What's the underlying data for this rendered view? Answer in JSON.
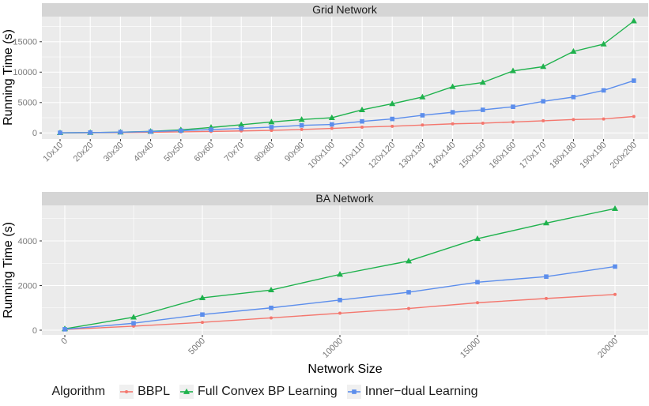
{
  "figure": {
    "xaxis_title": "Network Size",
    "panel_bg": "#EBEBEB",
    "strip_bg": "#D5D5D5",
    "grid_color": "#FFFFFF",
    "tick_color": "#333333",
    "tick_label_color": "#7A7A7A"
  },
  "legend": {
    "title": "Algorithm",
    "items": [
      {
        "label": "BBPL",
        "color": "#F4776E",
        "marker": "circle"
      },
      {
        "label": "Full Convex BP Learning",
        "color": "#1FB24D",
        "marker": "triangle"
      },
      {
        "label": "Inner−dual Learning",
        "color": "#5C8EEC",
        "marker": "square"
      }
    ]
  },
  "chart_data": [
    {
      "type": "line",
      "title": "Grid Network",
      "ylabel": "Running Time (s)",
      "xlabel": "",
      "x_type": "categorical",
      "categories": [
        "10x10",
        "20x20",
        "30x30",
        "40x40",
        "50x50",
        "60x60",
        "70x70",
        "80x80",
        "90x90",
        "100x100",
        "110x110",
        "120x120",
        "130x130",
        "140x140",
        "150x150",
        "160x160",
        "170x170",
        "180x180",
        "190x190",
        "200x200"
      ],
      "y_ticks": [
        0,
        5000,
        10000,
        15000
      ],
      "y_minor": [
        2500,
        7500,
        12500,
        17500
      ],
      "ylim": [
        -1000,
        19100
      ],
      "grid": true,
      "legend_position": "bottom",
      "series": [
        {
          "name": "BBPL",
          "color": "#F4776E",
          "marker": "circle",
          "values": [
            10,
            30,
            70,
            120,
            180,
            250,
            330,
            420,
            570,
            750,
            950,
            1100,
            1300,
            1500,
            1600,
            1800,
            2000,
            2200,
            2300,
            2700
          ]
        },
        {
          "name": "Full Convex BP Learning",
          "color": "#1FB24D",
          "marker": "triangle",
          "values": [
            20,
            60,
            130,
            250,
            500,
            900,
            1350,
            1800,
            2200,
            2500,
            3800,
            4800,
            5900,
            7600,
            8300,
            10200,
            10900,
            13400,
            14600,
            18400
          ]
        },
        {
          "name": "Inner−dual Learning",
          "color": "#5C8EEC",
          "marker": "square",
          "values": [
            30,
            60,
            130,
            220,
            380,
            550,
            750,
            950,
            1250,
            1400,
            1900,
            2300,
            2900,
            3400,
            3800,
            4300,
            5200,
            5900,
            7000,
            8600
          ]
        }
      ]
    },
    {
      "type": "line",
      "title": "BA Network",
      "ylabel": "Running Time (s)",
      "xlabel": "Network Size",
      "x_type": "linear",
      "x": [
        0,
        2500,
        5000,
        7500,
        10000,
        12500,
        15000,
        17500,
        20000
      ],
      "x_ticks": [
        0,
        5000,
        10000,
        15000,
        20000
      ],
      "x_minor": [
        2500,
        7500,
        12500,
        17500
      ],
      "xlim": [
        0,
        20000
      ],
      "y_ticks": [
        0,
        2000,
        4000
      ],
      "y_minor": [
        1000,
        3000,
        5000
      ],
      "ylim": [
        -200,
        5600
      ],
      "grid": true,
      "legend_position": "bottom",
      "series": [
        {
          "name": "BBPL",
          "color": "#F4776E",
          "marker": "circle",
          "values": [
            30,
            180,
            350,
            550,
            760,
            970,
            1230,
            1420,
            1600
          ]
        },
        {
          "name": "Full Convex BP Learning",
          "color": "#1FB24D",
          "marker": "triangle",
          "values": [
            60,
            580,
            1450,
            1800,
            2500,
            3100,
            4100,
            4800,
            5450
          ]
        },
        {
          "name": "Inner−dual Learning",
          "color": "#5C8EEC",
          "marker": "square",
          "values": [
            40,
            310,
            700,
            1000,
            1350,
            1700,
            2150,
            2400,
            2850
          ]
        }
      ]
    }
  ]
}
